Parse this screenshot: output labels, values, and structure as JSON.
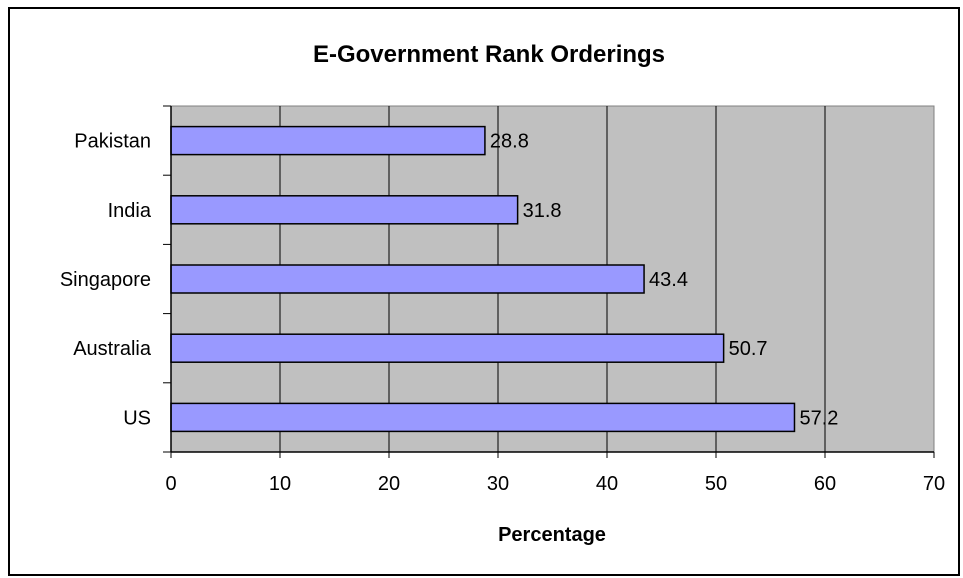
{
  "chart_data": {
    "type": "bar",
    "orientation": "horizontal",
    "title": "E-Government Rank Orderings",
    "xlabel": "Percentage",
    "ylabel": "",
    "categories": [
      "Pakistan",
      "India",
      "Singapore",
      "Australia",
      "US"
    ],
    "values": [
      28.8,
      31.8,
      43.4,
      50.7,
      57.2
    ],
    "data_labels": [
      "28.8",
      "31.8",
      "43.4",
      "50.7",
      "57.2"
    ],
    "xlim": [
      0,
      70
    ],
    "x_ticks": [
      0,
      10,
      20,
      30,
      40,
      50,
      60,
      70
    ],
    "x_tick_labels": [
      "0",
      "10",
      "20",
      "30",
      "40",
      "50",
      "60",
      "70"
    ],
    "grid": "vertical",
    "legend": "none",
    "colors": {
      "bar_fill": "#9999ff",
      "bar_stroke": "#000000",
      "plot_background": "#c0c0c0",
      "gridline": "#000000"
    }
  }
}
